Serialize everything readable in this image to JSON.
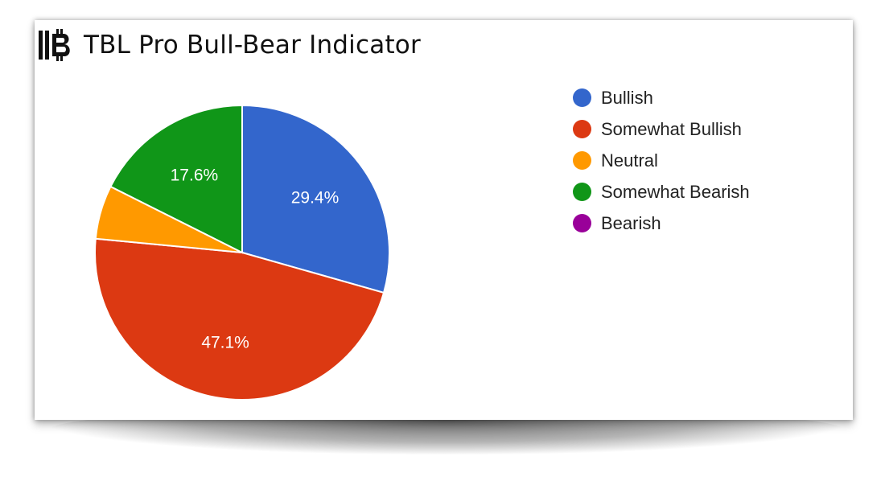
{
  "header": {
    "title": "TBL Pro Bull-Bear Indicator",
    "logo_icon": "bitcoin-logo-icon"
  },
  "chart_data": {
    "type": "pie",
    "title": "TBL Pro Bull-Bear Indicator",
    "start_angle_deg": 90,
    "direction": "clockwise",
    "slices": [
      {
        "name": "Bullish",
        "value": 29.4,
        "color": "#3366cc",
        "label": "29.4%"
      },
      {
        "name": "Somewhat Bullish",
        "value": 47.1,
        "color": "#dc3912",
        "label": "47.1%"
      },
      {
        "name": "Neutral",
        "value": 5.9,
        "color": "#ff9900",
        "label": ""
      },
      {
        "name": "Somewhat Bearish",
        "value": 17.6,
        "color": "#109618",
        "label": "17.6%"
      },
      {
        "name": "Bearish",
        "value": 0,
        "color": "#990099",
        "label": ""
      }
    ],
    "legend_position": "right"
  }
}
